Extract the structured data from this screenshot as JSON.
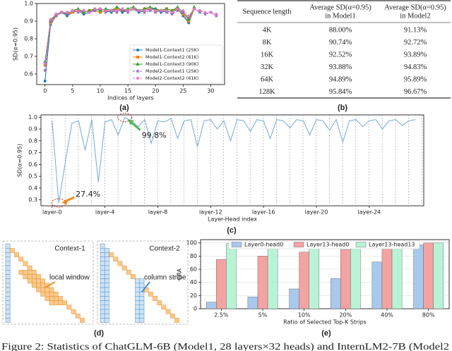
{
  "chart_data": [
    {
      "type": "line",
      "xlabel": "Indices of layers",
      "ylabel": "SD(α=0.95)",
      "x": [
        0,
        1,
        2,
        3,
        4,
        5,
        6,
        7,
        8,
        9,
        10,
        11,
        12,
        13,
        14,
        15,
        16,
        17,
        18,
        19,
        20,
        21,
        22,
        23,
        24,
        25,
        26,
        27,
        28,
        29,
        30,
        31
      ],
      "series": [
        {
          "name": "Model1-Context1 (25K)",
          "color": "#1f77b4",
          "marker": "circle",
          "values": [
            0.56,
            0.88,
            0.93,
            0.95,
            0.93,
            0.95,
            0.96,
            0.94,
            0.95,
            0.96,
            0.95,
            0.96,
            0.95,
            0.97,
            0.95,
            0.96,
            0.97,
            0.95,
            0.96,
            0.97,
            0.97,
            0.95,
            0.96,
            0.95,
            0.97,
            0.93,
            0.89,
            0.97,
            null,
            null,
            null,
            null
          ]
        },
        {
          "name": "Model1-Context2 (61K)",
          "color": "#ff7f0e",
          "marker": "square",
          "values": [
            0.65,
            0.89,
            0.93,
            0.95,
            0.94,
            0.95,
            0.96,
            0.95,
            0.96,
            0.96,
            0.95,
            0.96,
            0.96,
            0.97,
            0.96,
            0.96,
            0.97,
            0.96,
            0.97,
            0.97,
            0.96,
            0.96,
            0.97,
            0.96,
            0.97,
            0.94,
            0.9,
            0.97,
            null,
            null,
            null,
            null
          ]
        },
        {
          "name": "Model1-Context3 (90K)",
          "color": "#2ca02c",
          "marker": "triangle",
          "values": [
            0.67,
            0.9,
            0.94,
            0.95,
            0.94,
            0.96,
            0.97,
            0.95,
            0.96,
            0.97,
            0.96,
            0.97,
            0.96,
            0.98,
            0.96,
            0.97,
            0.98,
            0.96,
            0.97,
            0.98,
            0.97,
            0.96,
            0.97,
            0.96,
            0.98,
            0.95,
            0.91,
            0.98,
            null,
            null,
            null,
            null
          ]
        },
        {
          "name": "Model2-Context1 (25K)",
          "color": "#9467bd",
          "marker": "star",
          "dash": true,
          "values": [
            0.62,
            0.9,
            0.93,
            0.95,
            0.94,
            0.96,
            0.95,
            0.96,
            0.95,
            0.96,
            0.97,
            0.95,
            0.96,
            0.95,
            0.96,
            0.95,
            0.97,
            0.96,
            0.95,
            0.96,
            0.95,
            0.96,
            0.95,
            0.94,
            0.96,
            0.95,
            0.92,
            0.97,
            0.95,
            0.94,
            0.95,
            0.93
          ]
        },
        {
          "name": "Model2-Context2 (61K)",
          "color": "#e377c2",
          "marker": "circle",
          "dash": true,
          "values": [
            0.66,
            0.91,
            0.94,
            0.95,
            0.95,
            0.96,
            0.96,
            0.96,
            0.95,
            0.97,
            0.97,
            0.96,
            0.96,
            0.96,
            0.97,
            0.96,
            0.97,
            0.96,
            0.96,
            0.97,
            0.96,
            0.96,
            0.96,
            0.95,
            0.97,
            0.96,
            0.93,
            0.97,
            0.96,
            0.95,
            0.95,
            0.94
          ]
        }
      ],
      "xlim": [
        -1.5,
        32.5
      ],
      "xticks": [
        0,
        5,
        10,
        15,
        20,
        25,
        30
      ],
      "ylim": [
        0.54,
        1.0
      ],
      "yticks": [
        0.6,
        0.7,
        0.8,
        0.9,
        {
          "value": 1,
          "label": "1.0"
        }
      ],
      "grid": false,
      "legend": "lower right"
    },
    {
      "type": "line",
      "xlabel": "Layer-Head index",
      "ylabel": "SD(α=0.95)",
      "x": [
        0,
        16,
        32,
        48,
        64,
        80,
        96,
        112,
        128,
        144,
        160,
        176,
        192,
        208,
        224,
        240,
        256,
        272,
        288,
        304,
        320,
        336,
        352,
        368,
        384,
        400,
        416,
        432,
        448,
        464,
        480,
        496,
        512,
        528,
        544,
        560,
        576,
        592,
        608,
        624,
        640,
        656,
        672,
        688,
        704,
        720,
        736,
        752,
        768,
        784,
        800,
        816,
        832,
        848,
        864,
        880
      ],
      "series": [
        {
          "color": "#7eb0d8",
          "values": [
            0.97,
            0.274,
            0.62,
            0.95,
            0.97,
            0.72,
            0.98,
            0.45,
            0.96,
            0.98,
            0.85,
            0.998,
            0.97,
            0.92,
            0.98,
            0.78,
            0.97,
            0.96,
            0.99,
            0.82,
            0.97,
            0.98,
            0.75,
            0.97,
            0.98,
            0.9,
            0.97,
            0.8,
            0.98,
            0.97,
            0.88,
            0.98,
            0.97,
            0.82,
            0.98,
            0.97,
            0.91,
            0.98,
            0.97,
            0.85,
            0.98,
            0.97,
            0.89,
            0.98,
            0.79,
            0.97,
            0.98,
            0.92,
            0.97,
            0.98,
            0.9,
            0.97,
            0.98,
            0.93,
            0.97,
            0.98
          ]
        }
      ],
      "xlim": [
        -27,
        900
      ],
      "xticks": [
        {
          "value": 0,
          "label": "layer-0"
        },
        {
          "value": 128,
          "label": "layer-4"
        },
        {
          "value": 256,
          "label": "layer-8"
        },
        {
          "value": 384,
          "label": "layer-12"
        },
        {
          "value": 512,
          "label": "layer-16"
        },
        {
          "value": 640,
          "label": "layer-20"
        },
        {
          "value": 768,
          "label": "layer-24"
        }
      ],
      "ylim": [
        0.25,
        1.02
      ],
      "yticks": [
        0.3,
        0.4,
        0.5,
        0.6,
        0.7,
        0.8,
        0.9,
        {
          "value": 1,
          "label": "1.0"
        }
      ],
      "grid": false,
      "annotations": [
        {
          "text": "27.4%",
          "x": 16,
          "y": 0.274,
          "color": "#f28a1e"
        },
        {
          "text": "99.8%",
          "x": 176,
          "y": 0.998,
          "color": "#5cb85c"
        }
      ]
    },
    {
      "type": "bar",
      "xlabel": "Ratio of Selected Top-K Strips",
      "ylabel": "CRA",
      "categories": [
        "2.5%",
        "5%",
        "10%",
        "20%",
        "40%",
        "80%"
      ],
      "series": [
        {
          "name": "Layer0-head0",
          "color": "#a9c9ec",
          "values": [
            10,
            18,
            30,
            46,
            71,
            97
          ]
        },
        {
          "name": "Layer13-head0",
          "color": "#f4a3a3",
          "values": [
            75,
            80,
            86,
            90,
            99,
            100
          ]
        },
        {
          "name": "Layer13-head13",
          "color": "#b9f3d6",
          "values": [
            99,
            100,
            100,
            100,
            100,
            100
          ]
        }
      ],
      "ylim": [
        0,
        105
      ],
      "yticks": [
        0,
        20,
        40,
        60,
        80,
        100
      ],
      "grid": true,
      "legend": "upper center"
    }
  ],
  "table": {
    "header": [
      [
        "Sequence length"
      ],
      [
        "Average SD(α=0.95)",
        "in Model1"
      ],
      [
        "Average SD(α=0.95)",
        "in Model2"
      ]
    ],
    "rows": [
      [
        "4K",
        "88.00%",
        "91.13%"
      ],
      [
        "8K",
        "90.74%",
        "92.72%"
      ],
      [
        "16K",
        "92.52%",
        "93.89%"
      ],
      [
        "32K",
        "93.88%",
        "94.83%"
      ],
      [
        "64K",
        "94.89%",
        "95.89%"
      ],
      [
        "128K",
        "95.84%",
        "96.67%"
      ]
    ]
  },
  "diagram": {
    "panels": [
      {
        "title": "Context-1",
        "label": "local window"
      },
      {
        "title": "Context-2",
        "label": "column stripe"
      }
    ]
  },
  "panel_labels": [
    "(a)",
    "(b)",
    "(c)",
    "(d)",
    "(e)"
  ],
  "caption": "Figure 2: Statistics of ChatGLM-6B (Model1, 28 layers×32 heads) and InternLM2-7B (Model2"
}
